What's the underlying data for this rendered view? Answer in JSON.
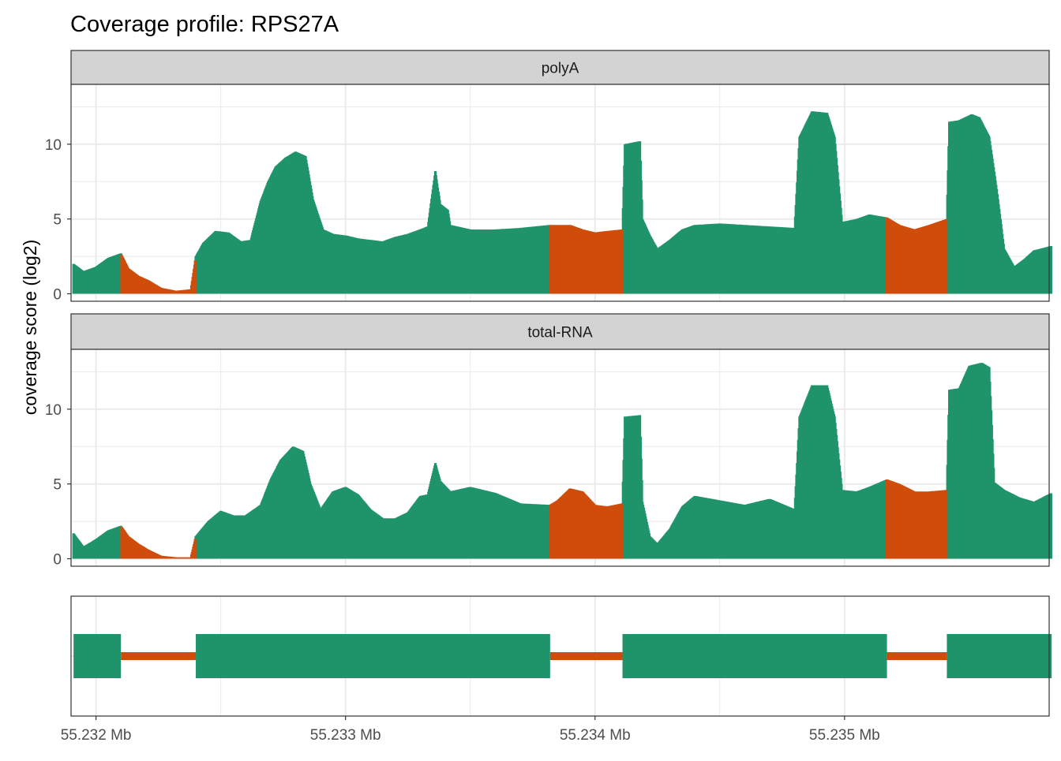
{
  "chart_data": {
    "type": "area",
    "title": "Coverage profile: RPS27A",
    "ylabel": "coverage score (log2)",
    "xlabel": "",
    "xlim": [
      55231.9,
      55235.82
    ],
    "ylim": [
      -0.5,
      14.0
    ],
    "x_ticks": [
      55232,
      55233,
      55234,
      55235
    ],
    "x_tick_labels": [
      "55.232 Mb",
      "55.233 Mb",
      "55.234 Mb",
      "55.235 Mb"
    ],
    "y_ticks": [
      0,
      5,
      10
    ],
    "y_tick_labels": [
      "0",
      "5",
      "10"
    ],
    "grid": true,
    "legend": "none",
    "colors": {
      "exon": "#1f936a",
      "intron": "#d04c0a",
      "strip_bg": "#d3d3d3",
      "grid": "#ebebeb",
      "border": "#333333"
    },
    "exons": [
      [
        55231.91,
        55232.1
      ],
      [
        55232.4,
        55233.82
      ],
      [
        55234.11,
        55235.17
      ],
      [
        55235.41,
        55235.83
      ]
    ],
    "introns": [
      [
        55232.1,
        55232.4
      ],
      [
        55233.82,
        55234.11
      ],
      [
        55235.17,
        55235.41
      ]
    ],
    "panels": [
      {
        "name": "polyA",
        "profile": [
          [
            55231.91,
            2.0
          ],
          [
            55231.95,
            1.5
          ],
          [
            55232.0,
            1.8
          ],
          [
            55232.05,
            2.4
          ],
          [
            55232.1,
            2.7
          ],
          [
            55232.13,
            1.7
          ],
          [
            55232.17,
            1.2
          ],
          [
            55232.21,
            0.9
          ],
          [
            55232.26,
            0.4
          ],
          [
            55232.32,
            0.2
          ],
          [
            55232.38,
            0.3
          ],
          [
            55232.4,
            2.5
          ],
          [
            55232.43,
            3.4
          ],
          [
            55232.48,
            4.2
          ],
          [
            55232.53,
            4.1
          ],
          [
            55232.58,
            3.5
          ],
          [
            55232.62,
            3.6
          ],
          [
            55232.66,
            6.2
          ],
          [
            55232.69,
            7.5
          ],
          [
            55232.72,
            8.5
          ],
          [
            55232.76,
            9.1
          ],
          [
            55232.8,
            9.5
          ],
          [
            55232.84,
            9.2
          ],
          [
            55232.87,
            6.3
          ],
          [
            55232.91,
            4.3
          ],
          [
            55232.95,
            4.0
          ],
          [
            55233.0,
            3.9
          ],
          [
            55233.05,
            3.7
          ],
          [
            55233.1,
            3.6
          ],
          [
            55233.15,
            3.5
          ],
          [
            55233.2,
            3.8
          ],
          [
            55233.25,
            4.0
          ],
          [
            55233.3,
            4.3
          ],
          [
            55233.33,
            4.5
          ],
          [
            55233.36,
            8.2
          ],
          [
            55233.38,
            6.0
          ],
          [
            55233.41,
            5.6
          ],
          [
            55233.42,
            4.6
          ],
          [
            55233.5,
            4.3
          ],
          [
            55233.6,
            4.3
          ],
          [
            55233.7,
            4.4
          ],
          [
            55233.82,
            4.6
          ],
          [
            55233.85,
            4.6
          ],
          [
            55233.9,
            4.6
          ],
          [
            55233.95,
            4.3
          ],
          [
            55234.0,
            4.1
          ],
          [
            55234.05,
            4.2
          ],
          [
            55234.11,
            4.3
          ],
          [
            55234.12,
            10.0
          ],
          [
            55234.18,
            10.2
          ],
          [
            55234.19,
            5.0
          ],
          [
            55234.22,
            3.9
          ],
          [
            55234.25,
            3.0
          ],
          [
            55234.3,
            3.6
          ],
          [
            55234.35,
            4.3
          ],
          [
            55234.4,
            4.6
          ],
          [
            55234.5,
            4.7
          ],
          [
            55234.6,
            4.6
          ],
          [
            55234.7,
            4.5
          ],
          [
            55234.8,
            4.4
          ],
          [
            55234.82,
            10.5
          ],
          [
            55234.87,
            12.2
          ],
          [
            55234.93,
            12.1
          ],
          [
            55234.96,
            10.5
          ],
          [
            55234.99,
            4.8
          ],
          [
            55235.05,
            5.0
          ],
          [
            55235.1,
            5.3
          ],
          [
            55235.17,
            5.1
          ],
          [
            55235.22,
            4.6
          ],
          [
            55235.28,
            4.3
          ],
          [
            55235.34,
            4.6
          ],
          [
            55235.41,
            5.0
          ],
          [
            55235.42,
            11.5
          ],
          [
            55235.46,
            11.6
          ],
          [
            55235.51,
            12.0
          ],
          [
            55235.54,
            11.8
          ],
          [
            55235.58,
            10.5
          ],
          [
            55235.61,
            7.0
          ],
          [
            55235.64,
            3.0
          ],
          [
            55235.68,
            1.8
          ],
          [
            55235.72,
            2.3
          ],
          [
            55235.76,
            2.9
          ],
          [
            55235.83,
            3.2
          ]
        ]
      },
      {
        "name": "total-RNA",
        "profile": [
          [
            55231.91,
            1.7
          ],
          [
            55231.95,
            0.8
          ],
          [
            55232.0,
            1.3
          ],
          [
            55232.05,
            1.9
          ],
          [
            55232.1,
            2.2
          ],
          [
            55232.13,
            1.5
          ],
          [
            55232.17,
            1.0
          ],
          [
            55232.21,
            0.6
          ],
          [
            55232.26,
            0.2
          ],
          [
            55232.32,
            0.1
          ],
          [
            55232.38,
            0.1
          ],
          [
            55232.4,
            1.5
          ],
          [
            55232.45,
            2.5
          ],
          [
            55232.5,
            3.2
          ],
          [
            55232.55,
            2.9
          ],
          [
            55232.6,
            2.9
          ],
          [
            55232.66,
            3.6
          ],
          [
            55232.7,
            5.3
          ],
          [
            55232.74,
            6.6
          ],
          [
            55232.79,
            7.5
          ],
          [
            55232.83,
            7.2
          ],
          [
            55232.86,
            5.0
          ],
          [
            55232.9,
            3.3
          ],
          [
            55232.95,
            4.5
          ],
          [
            55233.0,
            4.8
          ],
          [
            55233.05,
            4.3
          ],
          [
            55233.1,
            3.3
          ],
          [
            55233.15,
            2.7
          ],
          [
            55233.2,
            2.7
          ],
          [
            55233.25,
            3.1
          ],
          [
            55233.3,
            4.2
          ],
          [
            55233.33,
            4.3
          ],
          [
            55233.36,
            6.4
          ],
          [
            55233.38,
            5.2
          ],
          [
            55233.42,
            4.5
          ],
          [
            55233.5,
            4.8
          ],
          [
            55233.6,
            4.4
          ],
          [
            55233.7,
            3.7
          ],
          [
            55233.82,
            3.6
          ],
          [
            55233.85,
            3.9
          ],
          [
            55233.9,
            4.7
          ],
          [
            55233.95,
            4.5
          ],
          [
            55234.0,
            3.6
          ],
          [
            55234.05,
            3.5
          ],
          [
            55234.11,
            3.7
          ],
          [
            55234.12,
            9.5
          ],
          [
            55234.18,
            9.6
          ],
          [
            55234.19,
            3.8
          ],
          [
            55234.22,
            1.5
          ],
          [
            55234.25,
            1.0
          ],
          [
            55234.3,
            2.0
          ],
          [
            55234.35,
            3.5
          ],
          [
            55234.4,
            4.2
          ],
          [
            55234.5,
            3.9
          ],
          [
            55234.6,
            3.6
          ],
          [
            55234.7,
            4.0
          ],
          [
            55234.8,
            3.3
          ],
          [
            55234.82,
            9.5
          ],
          [
            55234.87,
            11.6
          ],
          [
            55234.93,
            11.6
          ],
          [
            55234.96,
            9.5
          ],
          [
            55234.99,
            4.6
          ],
          [
            55235.05,
            4.5
          ],
          [
            55235.1,
            4.8
          ],
          [
            55235.17,
            5.3
          ],
          [
            55235.22,
            5.0
          ],
          [
            55235.28,
            4.5
          ],
          [
            55235.34,
            4.5
          ],
          [
            55235.41,
            4.6
          ],
          [
            55235.42,
            11.3
          ],
          [
            55235.46,
            11.4
          ],
          [
            55235.5,
            12.9
          ],
          [
            55235.55,
            13.1
          ],
          [
            55235.58,
            12.8
          ],
          [
            55235.6,
            5.1
          ],
          [
            55235.64,
            4.6
          ],
          [
            55235.7,
            4.1
          ],
          [
            55235.76,
            3.8
          ],
          [
            55235.83,
            4.4
          ]
        ]
      }
    ]
  }
}
